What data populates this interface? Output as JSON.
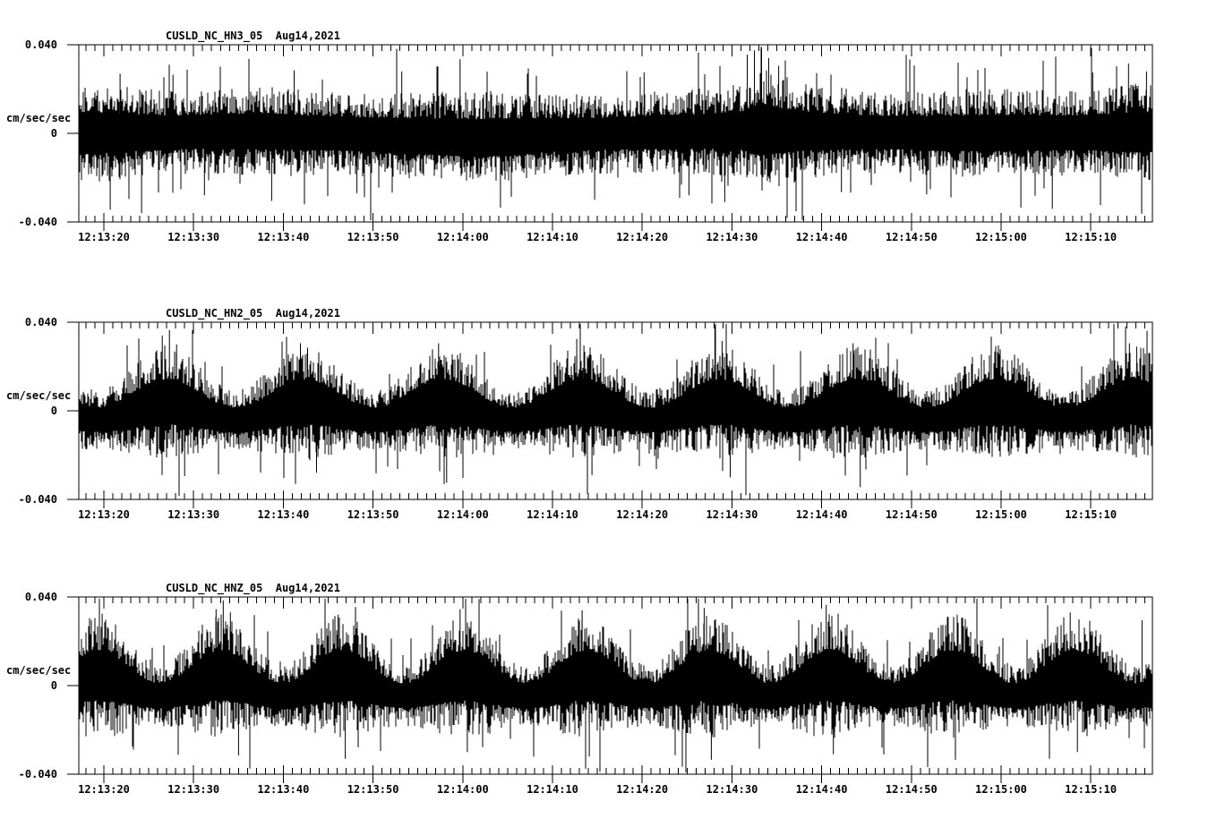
{
  "background_color": "#ffffff",
  "ink_color": "#000000",
  "chart_data": [
    {
      "type": "line",
      "subtype": "seismogram-trace",
      "station": "CUSLD_NC_HN3_05",
      "date_label": "Aug14,2021",
      "ylabel": "cm/sec/sec",
      "ylim": [
        -0.04,
        0.04
      ],
      "y_tick_labels": [
        "0.040",
        "0",
        "-0.040"
      ],
      "y_tick_values": [
        0.04,
        0,
        -0.04
      ],
      "x_tick_labels": [
        "12:13:20",
        "12:13:30",
        "12:13:40",
        "12:13:50",
        "12:14:00",
        "12:14:10",
        "12:14:20",
        "12:14:30",
        "12:14:40",
        "12:14:50",
        "12:15:00",
        "12:15:10"
      ],
      "x_major_interval_s": 10,
      "x_minor_interval_s": 1,
      "duration_s": 119.7,
      "envelope": {
        "mode": "points",
        "center_points": [
          [
            0,
            0
          ],
          [
            20,
            0.001
          ],
          [
            44,
            -0.002
          ],
          [
            60,
            0
          ],
          [
            76,
            0.0015
          ],
          [
            95,
            0
          ],
          [
            119,
            0.0005
          ]
        ],
        "half_points": [
          [
            0,
            0.016
          ],
          [
            4,
            0.0145
          ],
          [
            10,
            0.0125
          ],
          [
            16,
            0.013
          ],
          [
            22,
            0.0135
          ],
          [
            28,
            0.0125
          ],
          [
            34,
            0.013
          ],
          [
            40,
            0.0135
          ],
          [
            46,
            0.014
          ],
          [
            52,
            0.0125
          ],
          [
            58,
            0.012
          ],
          [
            64,
            0.0125
          ],
          [
            70,
            0.013
          ],
          [
            74,
            0.0145
          ],
          [
            76,
            0.019
          ],
          [
            78,
            0.017
          ],
          [
            82,
            0.014
          ],
          [
            88,
            0.0125
          ],
          [
            94,
            0.0125
          ],
          [
            100,
            0.0135
          ],
          [
            106,
            0.013
          ],
          [
            112,
            0.013
          ],
          [
            117,
            0.0145
          ],
          [
            120,
            0.015
          ]
        ]
      },
      "spikes": [
        [
          3.5,
          -0.0345
        ],
        [
          4.6,
          0.027
        ],
        [
          7.0,
          -0.036
        ],
        [
          10.5,
          0.0265
        ],
        [
          14,
          -0.028
        ],
        [
          21.5,
          -0.0305
        ],
        [
          24,
          0.0285
        ],
        [
          31,
          -0.027
        ],
        [
          36,
          0.028
        ],
        [
          42.5,
          0.0335
        ],
        [
          47,
          -0.0335
        ],
        [
          51,
          0.026
        ],
        [
          57.5,
          -0.03
        ],
        [
          63,
          0.0275
        ],
        [
          68,
          -0.028
        ],
        [
          72,
          -0.031
        ],
        [
          74.5,
          0.0355
        ],
        [
          75.3,
          0.0375
        ],
        [
          76.1,
          0.0385
        ],
        [
          76.9,
          0.034
        ],
        [
          78,
          0.0305
        ],
        [
          85,
          -0.0265
        ],
        [
          94.5,
          -0.0275
        ],
        [
          101,
          0.0295
        ],
        [
          105,
          -0.0335
        ],
        [
          108.5,
          -0.034
        ],
        [
          113,
          0.0275
        ],
        [
          117,
          0.0315
        ],
        [
          119,
          0.028
        ]
      ],
      "seed": 101
    },
    {
      "type": "line",
      "subtype": "seismogram-trace",
      "station": "CUSLD_NC_HN2_05",
      "date_label": "Aug14,2021",
      "ylabel": "cm/sec/sec",
      "ylim": [
        -0.04,
        0.04
      ],
      "y_tick_labels": [
        "0.040",
        "0",
        "-0.040"
      ],
      "y_tick_values": [
        0.04,
        0,
        -0.04
      ],
      "x_tick_labels": [
        "12:13:20",
        "12:13:30",
        "12:13:40",
        "12:13:50",
        "12:14:00",
        "12:14:10",
        "12:14:20",
        "12:14:30",
        "12:14:40",
        "12:14:50",
        "12:15:00",
        "12:15:10"
      ],
      "x_major_interval_s": 10,
      "x_minor_interval_s": 1,
      "duration_s": 119.7,
      "envelope": {
        "mode": "periodic",
        "period_s": 15.4,
        "first_crest_s": 9.8,
        "center_amp": 0.004,
        "half_base": 0.013,
        "half_mod": 0.004
      },
      "spikes": [
        [
          9.3,
          0.034
        ],
        [
          10.1,
          0.0365
        ],
        [
          10.9,
          0.03
        ],
        [
          11.8,
          -0.0295
        ],
        [
          24.7,
          0.0305
        ],
        [
          25.5,
          0.0285
        ],
        [
          26.5,
          -0.028
        ],
        [
          40.1,
          0.0305
        ],
        [
          41.0,
          -0.0325
        ],
        [
          55.5,
          0.0325
        ],
        [
          56.3,
          0.0295
        ],
        [
          57.2,
          -0.029
        ],
        [
          70.9,
          0.0385
        ],
        [
          71.7,
          0.0315
        ],
        [
          72.6,
          -0.03
        ],
        [
          86.3,
          0.0305
        ],
        [
          87.1,
          -0.0345
        ],
        [
          101.7,
          0.0335
        ],
        [
          102.5,
          0.0295
        ],
        [
          117.1,
          0.0305
        ],
        [
          117.9,
          0.029
        ]
      ],
      "seed": 202
    },
    {
      "type": "line",
      "subtype": "seismogram-trace",
      "station": "CUSLD_NC_HNZ_05",
      "date_label": "Aug14,2021",
      "ylabel": "cm/sec/sec",
      "ylim": [
        -0.04,
        0.04
      ],
      "y_tick_labels": [
        "0.040",
        "0",
        "-0.040"
      ],
      "y_tick_values": [
        0.04,
        0,
        -0.04
      ],
      "x_tick_labels": [
        "12:13:20",
        "12:13:30",
        "12:13:40",
        "12:13:50",
        "12:14:00",
        "12:14:10",
        "12:14:20",
        "12:14:30",
        "12:14:40",
        "12:14:50",
        "12:15:00",
        "12:15:10"
      ],
      "x_major_interval_s": 10,
      "x_minor_interval_s": 1,
      "duration_s": 119.7,
      "envelope": {
        "mode": "periodic",
        "period_s": 13.6,
        "first_crest_s": 2.2,
        "center_amp": 0.0045,
        "half_base": 0.014,
        "half_mod": 0.0048
      },
      "spikes": [
        [
          1.8,
          0.0305
        ],
        [
          2.6,
          0.0325
        ],
        [
          15.3,
          0.0345
        ],
        [
          16.1,
          0.0385
        ],
        [
          16.9,
          0.033
        ],
        [
          17.8,
          -0.0315
        ],
        [
          28.9,
          0.032
        ],
        [
          29.7,
          -0.033
        ],
        [
          42.5,
          0.0345
        ],
        [
          43.3,
          -0.03
        ],
        [
          56.1,
          0.034
        ],
        [
          56.9,
          -0.032
        ],
        [
          69.7,
          0.035
        ],
        [
          70.5,
          -0.0335
        ],
        [
          83.3,
          0.0365
        ],
        [
          84.1,
          -0.031
        ],
        [
          96.9,
          0.031
        ],
        [
          97.7,
          -0.0335
        ],
        [
          110.5,
          0.033
        ],
        [
          111.3,
          -0.03
        ],
        [
          118.5,
          0.0295
        ]
      ],
      "seed": 303
    }
  ]
}
